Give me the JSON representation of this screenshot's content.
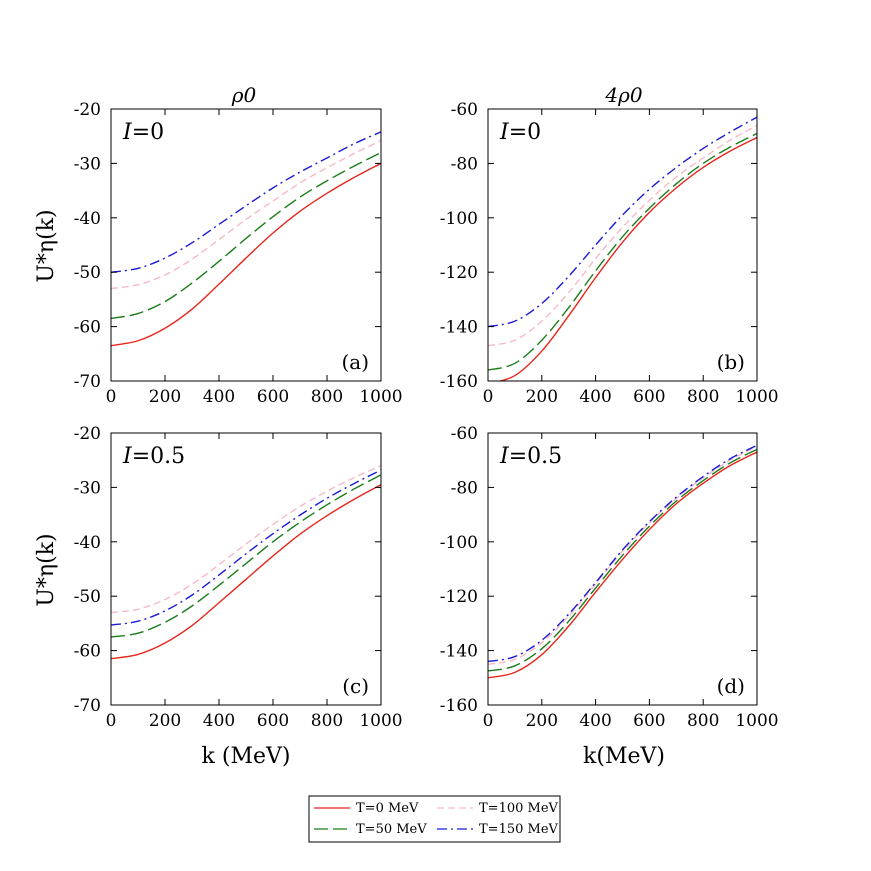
{
  "figure": {
    "column_titles": [
      "ρ0",
      "4ρ0"
    ],
    "ylabel": "U*η(k)",
    "xlabels": [
      "k (MeV)",
      "k(MeV)"
    ]
  },
  "legend": [
    {
      "label": "T=0 MeV",
      "color": "#e8261c",
      "dash": "solid"
    },
    {
      "label": "T=100 MeV",
      "color": "#f7b9c6",
      "dash": "dashed"
    },
    {
      "label": "T=50 MeV",
      "color": "#1a7d1a",
      "dash": "longdash"
    },
    {
      "label": "T=150 MeV",
      "color": "#1a1ad9",
      "dash": "dashdot"
    }
  ],
  "chart_data": [
    {
      "type": "line",
      "panel_label": "(a)",
      "annotation": "I=0",
      "xlim": [
        0,
        1000
      ],
      "ylim": [
        -70,
        -20
      ],
      "xticks": [
        0,
        200,
        400,
        600,
        800,
        1000
      ],
      "yticks": [
        -70,
        -60,
        -50,
        -40,
        -30,
        -20
      ],
      "x": [
        0,
        100,
        200,
        300,
        400,
        500,
        600,
        700,
        800,
        900,
        1000
      ],
      "series": [
        {
          "name": "T=0 MeV",
          "values": [
            -63.5,
            -62.6,
            -60.3,
            -56.8,
            -52.2,
            -47.4,
            -42.8,
            -38.8,
            -35.5,
            -32.6,
            -30.0
          ]
        },
        {
          "name": "T=50 MeV",
          "values": [
            -58.5,
            -57.6,
            -55.4,
            -52.0,
            -48.0,
            -43.8,
            -39.8,
            -36.2,
            -33.2,
            -30.5,
            -28.0
          ]
        },
        {
          "name": "T=100 MeV",
          "values": [
            -53.0,
            -52.3,
            -50.5,
            -47.6,
            -44.0,
            -40.3,
            -36.9,
            -33.6,
            -30.8,
            -28.2,
            -25.8
          ]
        },
        {
          "name": "T=150 MeV",
          "values": [
            -50.0,
            -49.3,
            -47.4,
            -44.6,
            -41.2,
            -37.8,
            -34.5,
            -31.6,
            -29.0,
            -26.4,
            -24.2
          ]
        }
      ]
    },
    {
      "type": "line",
      "panel_label": "(b)",
      "annotation": "I=0",
      "xlim": [
        0,
        1000
      ],
      "ylim": [
        -160,
        -60
      ],
      "xticks": [
        0,
        200,
        400,
        600,
        800,
        1000
      ],
      "yticks": [
        -160,
        -140,
        -120,
        -100,
        -80,
        -60
      ],
      "x": [
        0,
        100,
        200,
        300,
        400,
        500,
        600,
        700,
        800,
        900,
        1000
      ],
      "series": [
        {
          "name": "T=0 MeV",
          "values": [
            -161.0,
            -158.0,
            -149.0,
            -136.0,
            -122.0,
            -109.0,
            -98.0,
            -89.0,
            -81.5,
            -75.5,
            -70.5
          ]
        },
        {
          "name": "T=50 MeV",
          "values": [
            -156.0,
            -153.5,
            -145.0,
            -133.0,
            -119.5,
            -107.0,
            -96.5,
            -87.5,
            -80.0,
            -74.0,
            -69.0
          ]
        },
        {
          "name": "T=100 MeV",
          "values": [
            -147.0,
            -145.0,
            -138.0,
            -127.5,
            -115.0,
            -103.5,
            -93.5,
            -85.0,
            -78.0,
            -71.5,
            -66.0
          ]
        },
        {
          "name": "T=150 MeV",
          "values": [
            -140.0,
            -138.0,
            -131.5,
            -121.5,
            -110.0,
            -99.0,
            -89.5,
            -81.5,
            -74.5,
            -68.5,
            -63.0
          ]
        }
      ]
    },
    {
      "type": "line",
      "panel_label": "(c)",
      "annotation": "I=0.5",
      "xlim": [
        0,
        1000
      ],
      "ylim": [
        -70,
        -20
      ],
      "xticks": [
        0,
        200,
        400,
        600,
        800,
        1000
      ],
      "yticks": [
        -70,
        -60,
        -50,
        -40,
        -30,
        -20
      ],
      "x": [
        0,
        100,
        200,
        300,
        400,
        500,
        600,
        700,
        800,
        900,
        1000
      ],
      "series": [
        {
          "name": "T=0 MeV",
          "values": [
            -61.5,
            -60.7,
            -58.6,
            -55.4,
            -51.2,
            -46.9,
            -42.6,
            -38.6,
            -35.2,
            -32.2,
            -29.5
          ]
        },
        {
          "name": "T=50 MeV",
          "values": [
            -57.5,
            -56.8,
            -54.8,
            -51.8,
            -48.0,
            -44.0,
            -40.0,
            -36.4,
            -33.2,
            -30.3,
            -27.7
          ]
        },
        {
          "name": "T=100 MeV",
          "values": [
            -53.0,
            -52.4,
            -50.6,
            -47.8,
            -44.2,
            -40.4,
            -36.8,
            -33.5,
            -30.7,
            -28.2,
            -26.0
          ]
        },
        {
          "name": "T=150 MeV",
          "values": [
            -55.3,
            -54.6,
            -52.7,
            -49.8,
            -46.1,
            -42.2,
            -38.5,
            -35.1,
            -32.0,
            -29.3,
            -26.8
          ]
        }
      ]
    },
    {
      "type": "line",
      "panel_label": "(d)",
      "annotation": "I=0.5",
      "xlim": [
        0,
        1000
      ],
      "ylim": [
        -160,
        -60
      ],
      "xticks": [
        0,
        200,
        400,
        600,
        800,
        1000
      ],
      "yticks": [
        -160,
        -140,
        -120,
        -100,
        -80,
        -60
      ],
      "x": [
        0,
        100,
        200,
        300,
        400,
        500,
        600,
        700,
        800,
        900,
        1000
      ],
      "series": [
        {
          "name": "T=0 MeV",
          "values": [
            -150.0,
            -148.0,
            -141.5,
            -131.0,
            -118.5,
            -106.5,
            -95.5,
            -86.0,
            -78.5,
            -72.0,
            -67.0
          ]
        },
        {
          "name": "T=50 MeV",
          "values": [
            -147.5,
            -145.6,
            -139.3,
            -129.2,
            -117.0,
            -105.0,
            -94.3,
            -85.0,
            -77.5,
            -71.0,
            -66.0
          ]
        },
        {
          "name": "T=100 MeV",
          "values": [
            -145.0,
            -143.2,
            -137.1,
            -127.4,
            -115.5,
            -103.5,
            -93.0,
            -84.0,
            -76.5,
            -70.0,
            -65.0
          ]
        },
        {
          "name": "T=150 MeV",
          "values": [
            -144.0,
            -142.2,
            -136.2,
            -126.6,
            -115.0,
            -103.0,
            -92.6,
            -83.6,
            -76.0,
            -69.5,
            -64.5
          ]
        }
      ]
    }
  ]
}
